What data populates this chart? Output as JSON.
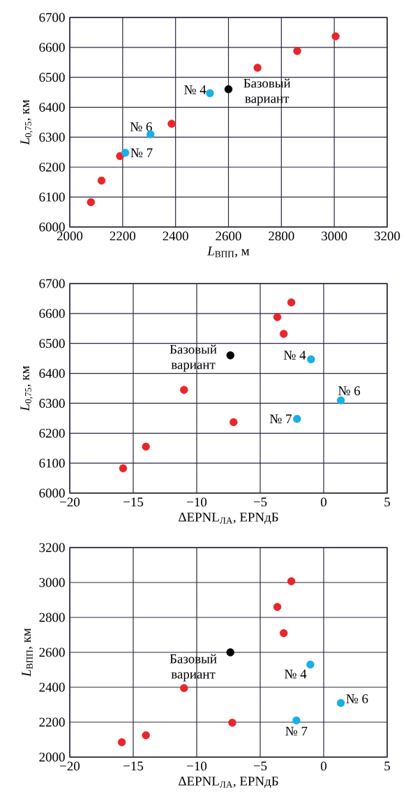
{
  "chart_data": [
    {
      "type": "scatter",
      "xlabel": "*L*$_{ВПП}$, м",
      "ylabel": "*L*$_{0,75}$, км",
      "xlim": [
        2000,
        3200
      ],
      "ylim": [
        6000,
        6700
      ],
      "xticks": [
        2000,
        2200,
        2400,
        2600,
        2800,
        3000,
        3200
      ],
      "yticks": [
        6000,
        6100,
        6200,
        6300,
        6400,
        6500,
        6600,
        6700
      ],
      "grid": true,
      "series": [
        {
          "color": "#e8262a",
          "x": [
            2080,
            2120,
            2190,
            2385,
            2710,
            2860,
            3005
          ],
          "values": [
            6083,
            6155,
            6237,
            6345,
            6532,
            6588,
            6637
          ]
        },
        {
          "color": "#1aafe6",
          "x": [
            2530,
            2305,
            2210
          ],
          "values": [
            6447,
            6310,
            6248
          ]
        },
        {
          "color": "#000000",
          "x": [
            2600
          ],
          "values": [
            6460
          ]
        }
      ],
      "annotations": [
        {
          "text": "№ 4",
          "x": 2530,
          "y": 6447
        },
        {
          "text": "№ 6",
          "x": 2305,
          "y": 6310
        },
        {
          "text": "№ 7",
          "x": 2210,
          "y": 6248
        },
        {
          "text": "Базовый вариант",
          "x": 2600,
          "y": 6460
        }
      ]
    },
    {
      "type": "scatter",
      "xlabel": "ΔEPNL$_{ЛА}$, EPNдБ",
      "ylabel": "*L*$_{0,75}$, км",
      "xlim": [
        -20,
        5
      ],
      "ylim": [
        6000,
        6700
      ],
      "xticks": [
        {
          "value": -20,
          "label": "−20"
        },
        {
          "value": -15,
          "label": "−15"
        },
        {
          "value": -10,
          "label": "−10"
        },
        {
          "value": -5,
          "label": "−5"
        },
        0,
        5
      ],
      "yticks": [
        6000,
        6100,
        6200,
        6300,
        6400,
        6500,
        6600,
        6700
      ],
      "grid": true,
      "series": [
        {
          "color": "#e8262a",
          "x": [
            -15.8,
            -14.0,
            -7.1,
            -11.0,
            -3.15,
            -3.65,
            -2.55
          ],
          "values": [
            6083,
            6155,
            6237,
            6345,
            6532,
            6588,
            6637
          ]
        },
        {
          "color": "#1aafe6",
          "x": [
            -1.0,
            1.35,
            -2.1
          ],
          "values": [
            6447,
            6310,
            6248
          ]
        },
        {
          "color": "#000000",
          "x": [
            -7.35
          ],
          "values": [
            6460
          ]
        }
      ],
      "annotations": [
        {
          "text": "№ 4",
          "x": -1.0,
          "y": 6447
        },
        {
          "text": "№ 6",
          "x": 1.35,
          "y": 6310
        },
        {
          "text": "№ 7",
          "x": -2.1,
          "y": 6248
        },
        {
          "text": "Базовый вариант",
          "x": -7.35,
          "y": 6460
        }
      ]
    },
    {
      "type": "scatter",
      "xlabel": "ΔEPNL$_{ЛА}$, EPNдБ",
      "ylabel": "*L*$_{ВПП}$, км",
      "xlim": [
        -20,
        5
      ],
      "ylim": [
        2000,
        3200
      ],
      "xticks": [
        {
          "value": -20,
          "label": "−20"
        },
        {
          "value": -15,
          "label": "−15"
        },
        {
          "value": -10,
          "label": "−10"
        },
        {
          "value": -5,
          "label": "−5"
        },
        0,
        5
      ],
      "yticks": [
        2000,
        2200,
        2400,
        2600,
        2800,
        3000,
        3200
      ],
      "grid": true,
      "series": [
        {
          "color": "#e8262a",
          "x": [
            -15.9,
            -14.0,
            -7.2,
            -11.0,
            -3.15,
            -3.65,
            -2.55
          ],
          "values": [
            2085,
            2125,
            2197,
            2395,
            2710,
            2860,
            3007
          ]
        },
        {
          "color": "#1aafe6",
          "x": [
            -1.05,
            1.35,
            -2.15
          ],
          "values": [
            2530,
            2310,
            2210
          ]
        },
        {
          "color": "#000000",
          "x": [
            -7.35
          ],
          "values": [
            2600
          ]
        }
      ],
      "annotations": [
        {
          "text": "№ 4",
          "x": -1.05,
          "y": 2530
        },
        {
          "text": "№ 6",
          "x": 1.35,
          "y": 2310
        },
        {
          "text": "№ 7",
          "x": -2.15,
          "y": 2210
        },
        {
          "text": "Базовый вариант",
          "x": -7.35,
          "y": 2600
        }
      ]
    }
  ]
}
